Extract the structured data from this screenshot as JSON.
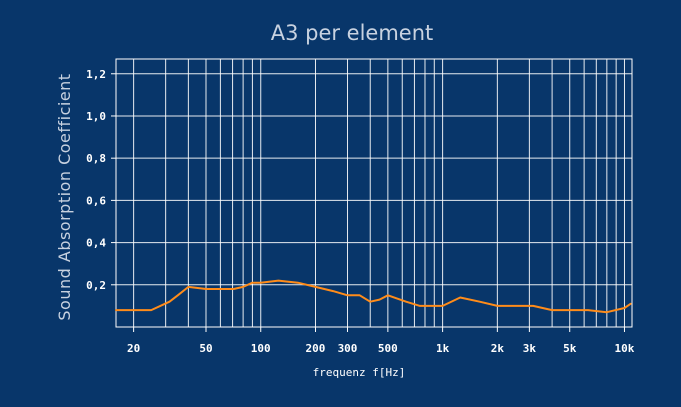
{
  "chart_data": {
    "type": "line",
    "title": "A3  per element",
    "xlabel": "frequenz f[Hz]",
    "ylabel": "Sound Absorption Coefficient",
    "x_scale": "log",
    "xlim": [
      16,
      11000
    ],
    "ylim": [
      0.0,
      1.27
    ],
    "grid": true,
    "x_ticks": [
      {
        "value": 20,
        "label": "20"
      },
      {
        "value": 50,
        "label": "50"
      },
      {
        "value": 100,
        "label": "100"
      },
      {
        "value": 200,
        "label": "200"
      },
      {
        "value": 300,
        "label": "300"
      },
      {
        "value": 500,
        "label": "500"
      },
      {
        "value": 1000,
        "label": "1k"
      },
      {
        "value": 2000,
        "label": "2k"
      },
      {
        "value": 3000,
        "label": "3k"
      },
      {
        "value": 5000,
        "label": "5k"
      },
      {
        "value": 10000,
        "label": "10k"
      }
    ],
    "y_ticks": [
      {
        "value": 0.2,
        "label": "0,2"
      },
      {
        "value": 0.4,
        "label": "0,4"
      },
      {
        "value": 0.6,
        "label": "0,6"
      },
      {
        "value": 0.8,
        "label": "0,8"
      },
      {
        "value": 1.0,
        "label": "1,0"
      },
      {
        "value": 1.2,
        "label": "1,2"
      }
    ],
    "series": [
      {
        "color": "#ff8c1a",
        "points": [
          [
            16,
            0.08
          ],
          [
            20,
            0.08
          ],
          [
            25,
            0.08
          ],
          [
            31.5,
            0.12
          ],
          [
            35,
            0.15
          ],
          [
            40,
            0.19
          ],
          [
            50,
            0.18
          ],
          [
            63,
            0.18
          ],
          [
            71,
            0.18
          ],
          [
            80,
            0.19
          ],
          [
            90,
            0.21
          ],
          [
            100,
            0.21
          ],
          [
            125,
            0.22
          ],
          [
            160,
            0.21
          ],
          [
            200,
            0.19
          ],
          [
            250,
            0.17
          ],
          [
            300,
            0.15
          ],
          [
            350,
            0.15
          ],
          [
            400,
            0.12
          ],
          [
            450,
            0.13
          ],
          [
            500,
            0.15
          ],
          [
            630,
            0.12
          ],
          [
            750,
            0.1
          ],
          [
            800,
            0.1
          ],
          [
            1000,
            0.1
          ],
          [
            1250,
            0.14
          ],
          [
            1600,
            0.12
          ],
          [
            2000,
            0.1
          ],
          [
            2500,
            0.1
          ],
          [
            3150,
            0.1
          ],
          [
            4000,
            0.08
          ],
          [
            5000,
            0.08
          ],
          [
            6300,
            0.08
          ],
          [
            8000,
            0.07
          ],
          [
            10000,
            0.09
          ],
          [
            10800,
            0.11
          ]
        ]
      }
    ]
  }
}
